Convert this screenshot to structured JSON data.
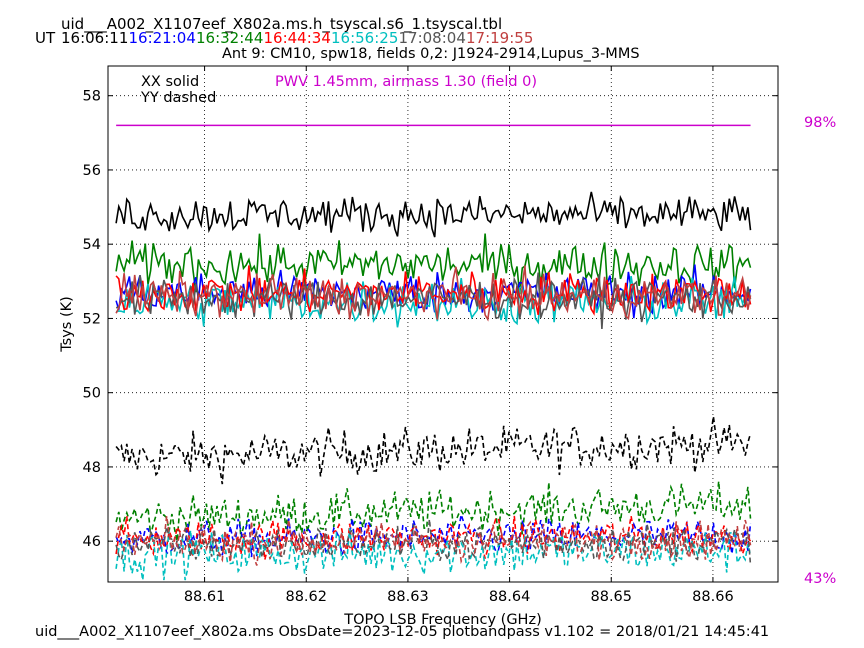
{
  "chart_data": {
    "type": "line",
    "title": "uid___A002_X1107eef_X802a.ms.h_tsyscal.s6_1.tsyscal.tbl",
    "subtitle": "Ant 9: CM10,  spw18,  fields 0,2: J1924-2914,Lupus_3-MMS",
    "time_prefix": "UT",
    "times": [
      {
        "label": "16:06:11",
        "color": "#000000"
      },
      {
        "label": "16:21:04",
        "color": "#0000ff"
      },
      {
        "label": "16:32:44",
        "color": "#008000"
      },
      {
        "label": "16:44:34",
        "color": "#ff0000"
      },
      {
        "label": "16:56:25",
        "color": "#00bfbf"
      },
      {
        "label": "17:08:04",
        "color": "#555555"
      },
      {
        "label": "17:19:55",
        "color": "#c04040"
      }
    ],
    "xlabel": "TOPO LSB Frequency (GHz)",
    "ylabel": "Tsys (K)",
    "xlim": [
      88.6005,
      88.6664
    ],
    "ylim": [
      44.9,
      58.8
    ],
    "x_ticks": [
      88.61,
      88.62,
      88.63,
      88.64,
      88.65,
      88.66
    ],
    "y_ticks": [
      46,
      48,
      50,
      52,
      54,
      56,
      58
    ],
    "grid": true,
    "legend_text": [
      "XX solid",
      "YY dashed"
    ],
    "pwv_text": "PWV 1.45mm, airmass 1.30 (field 0)",
    "pwv_color": "#cc00cc",
    "transmission": {
      "level": 57.2,
      "label_top": "98%",
      "label_bottom": "43%"
    },
    "freq_range": [
      88.6013,
      88.6637
    ],
    "footer": "uid___A002_X1107eef_X802a.ms  ObsDate=2023-12-05   plotbandpass v1.102 = 2018/01/21 14:45:41",
    "series": [
      {
        "pol": "YY",
        "color": "#000000",
        "mean": 48.45,
        "noise": 0.3,
        "slope": 0.4
      },
      {
        "pol": "YY",
        "color": "#008000",
        "mean": 46.8,
        "noise": 0.28,
        "slope": 0.4
      },
      {
        "pol": "YY",
        "color": "#0000ff",
        "mean": 46.1,
        "noise": 0.25,
        "slope": 0.1
      },
      {
        "pol": "YY",
        "color": "#ff0000",
        "mean": 46.1,
        "noise": 0.25,
        "slope": 0.1
      },
      {
        "pol": "YY",
        "color": "#00bfbf",
        "mean": 45.7,
        "noise": 0.3,
        "slope": 0.1
      },
      {
        "pol": "YY",
        "color": "#555555",
        "mean": 45.95,
        "noise": 0.25,
        "slope": 0.1
      },
      {
        "pol": "YY",
        "color": "#c04040",
        "mean": 46.0,
        "noise": 0.25,
        "slope": 0.1
      },
      {
        "pol": "XX",
        "color": "#000000",
        "mean": 54.8,
        "noise": 0.25,
        "slope": 0.0
      },
      {
        "pol": "XX",
        "color": "#008000",
        "mean": 53.45,
        "noise": 0.3,
        "slope": 0.0
      },
      {
        "pol": "XX",
        "color": "#0000ff",
        "mean": 52.7,
        "noise": 0.28,
        "slope": 0.0
      },
      {
        "pol": "XX",
        "color": "#00bfbf",
        "mean": 52.45,
        "noise": 0.32,
        "slope": 0.0
      },
      {
        "pol": "XX",
        "color": "#ff0000",
        "mean": 52.7,
        "noise": 0.28,
        "slope": 0.0
      },
      {
        "pol": "XX",
        "color": "#555555",
        "mean": 52.55,
        "noise": 0.28,
        "slope": 0.0
      },
      {
        "pol": "XX",
        "color": "#c04040",
        "mean": 52.6,
        "noise": 0.28,
        "slope": 0.0
      }
    ]
  }
}
